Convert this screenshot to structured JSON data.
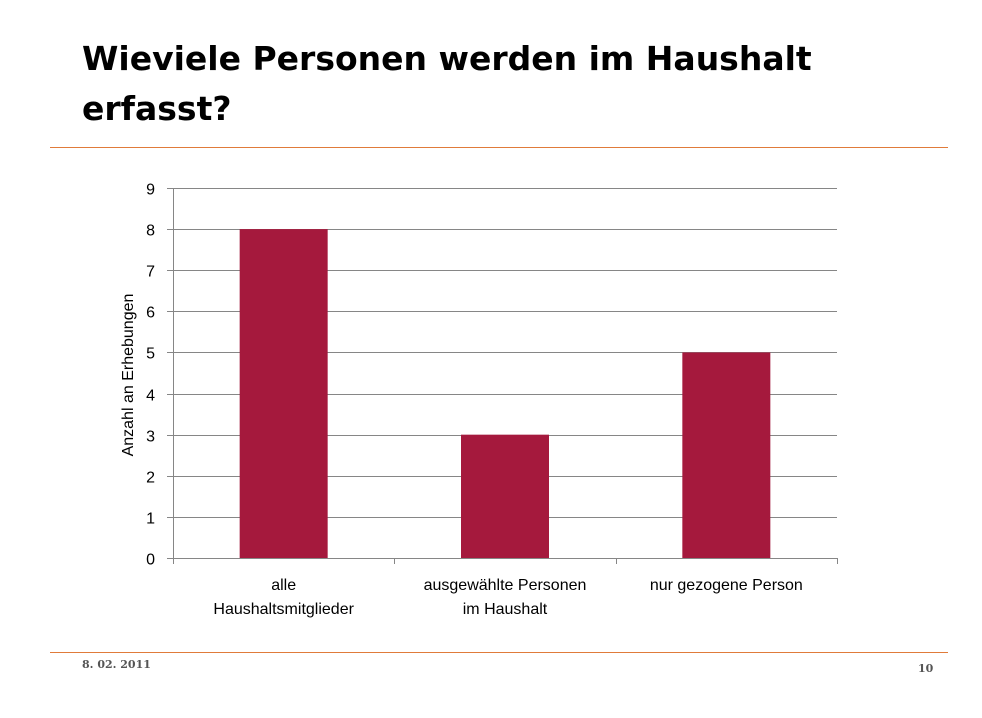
{
  "slide": {
    "title": "Wieviele Personen werden im Haushalt erfasst?",
    "date": "8. 02. 2011",
    "page_number": "10"
  },
  "colors": {
    "bar": "#a5193d",
    "rule": "#e07b3a",
    "gridline": "#868686"
  },
  "chart_data": {
    "type": "bar",
    "categories": [
      [
        "alle",
        "Haushaltsmitglieder"
      ],
      [
        "ausgewählte Personen",
        "im Haushalt"
      ],
      [
        "nur gezogene Person"
      ]
    ],
    "values": [
      8,
      3,
      5
    ],
    "title": "",
    "xlabel": "",
    "ylabel": "Anzahl an Erhebungen",
    "ylim": [
      0,
      9
    ],
    "yticks": [
      0,
      1,
      2,
      3,
      4,
      5,
      6,
      7,
      8,
      9
    ],
    "grid": true,
    "legend": "none"
  }
}
